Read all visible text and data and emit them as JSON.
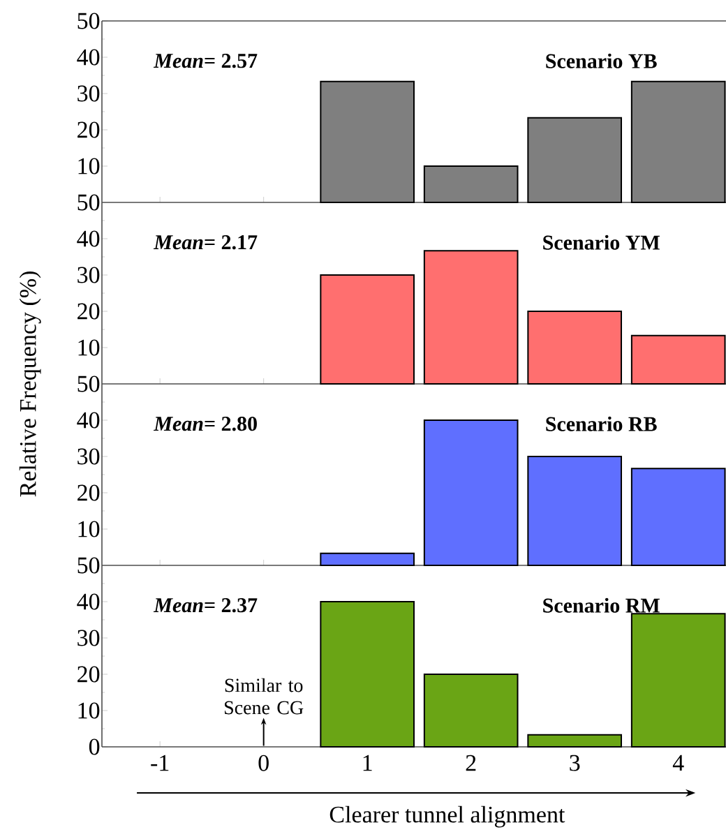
{
  "chart_data": [
    {
      "type": "bar",
      "title": "Scenario YB",
      "ylabel": "Relative Frequency (%)",
      "annotations": [
        "*Mean*= 2.57"
      ],
      "x": [
        1,
        2,
        3,
        4
      ],
      "values": [
        33.3,
        10,
        23.3,
        33.3
      ],
      "color": "#7f7f7f",
      "xlim": [
        -1.56,
        4.46
      ],
      "xticks": [
        -1,
        0,
        1,
        2,
        3,
        4
      ],
      "ylim": [
        0,
        50
      ],
      "yticks": [
        10,
        20,
        30,
        40,
        50
      ],
      "tick_labels": "y"
    },
    {
      "type": "bar",
      "title": "Scenario YM",
      "annotations": [
        "*Mean*= 2.17"
      ],
      "x": [
        1,
        2,
        3,
        4
      ],
      "values": [
        30,
        36.7,
        20,
        13.3
      ],
      "color": "#ff6f6f",
      "xlim": [
        -1.56,
        4.46
      ],
      "xticks": [
        -1,
        0,
        1,
        2,
        3,
        4
      ],
      "ylim": [
        0,
        50
      ],
      "yticks": [
        10,
        20,
        30,
        40,
        50
      ],
      "tick_labels": "y"
    },
    {
      "type": "bar",
      "title": "Scenario RB",
      "annotations": [
        "*Mean*= 2.80"
      ],
      "x": [
        1,
        2,
        3,
        4
      ],
      "values": [
        3.3,
        40,
        30,
        26.7
      ],
      "color": "#5f6fff",
      "xlim": [
        -1.56,
        4.46
      ],
      "xticks": [
        -1,
        0,
        1,
        2,
        3,
        4
      ],
      "ylim": [
        0,
        50
      ],
      "yticks": [
        10,
        20,
        30,
        40,
        50
      ],
      "tick_labels": "y"
    },
    {
      "type": "bar",
      "title": "Scenario RM",
      "xlabel": "Clearer tunnel alignment",
      "annotations": [
        "*Mean*= 2.37",
        "Similar to Scene CG"
      ],
      "x": [
        1,
        2,
        3,
        4
      ],
      "values": [
        40,
        20,
        3.3,
        36.7
      ],
      "color": "#6aa515",
      "xlim": [
        -1.56,
        4.46
      ],
      "xticks": [
        -1,
        0,
        1,
        2,
        3,
        4
      ],
      "ylim": [
        0,
        50
      ],
      "yticks": [
        0,
        10,
        20,
        30,
        40,
        50
      ]
    }
  ]
}
